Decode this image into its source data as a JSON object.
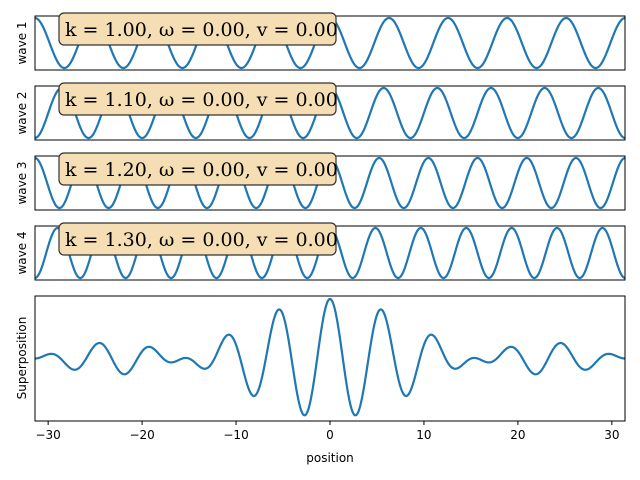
{
  "chart_data": {
    "type": "line",
    "x_range": [
      -31.4,
      31.4
    ],
    "color": "#1f77b4",
    "box_color": "#f5deb3",
    "panels": [
      {
        "ylabel": "wave 1",
        "k": 1.0,
        "omega": 0.0,
        "v": 0.0,
        "annotation": "k = 1.00, ω = 0.00, v = 0.00"
      },
      {
        "ylabel": "wave 2",
        "k": 1.1,
        "omega": 0.0,
        "v": 0.0,
        "annotation": "k = 1.10, ω = 0.00, v = 0.00"
      },
      {
        "ylabel": "wave 3",
        "k": 1.2,
        "omega": 0.0,
        "v": 0.0,
        "annotation": "k = 1.20, ω = 0.00, v = 0.00"
      },
      {
        "ylabel": "wave 4",
        "k": 1.3,
        "omega": 0.0,
        "v": 0.0,
        "annotation": "k = 1.30, ω = 0.00, v = 0.00"
      }
    ],
    "superposition": {
      "ylabel": "Superposition",
      "xlabel": "position",
      "ylim": [
        -4.2,
        4.2
      ],
      "xticks": [
        -30,
        -20,
        -10,
        0,
        10,
        20,
        30
      ],
      "xtick_labels": [
        "−30",
        "−20",
        "−10",
        "0",
        "10",
        "20",
        "30"
      ]
    }
  }
}
